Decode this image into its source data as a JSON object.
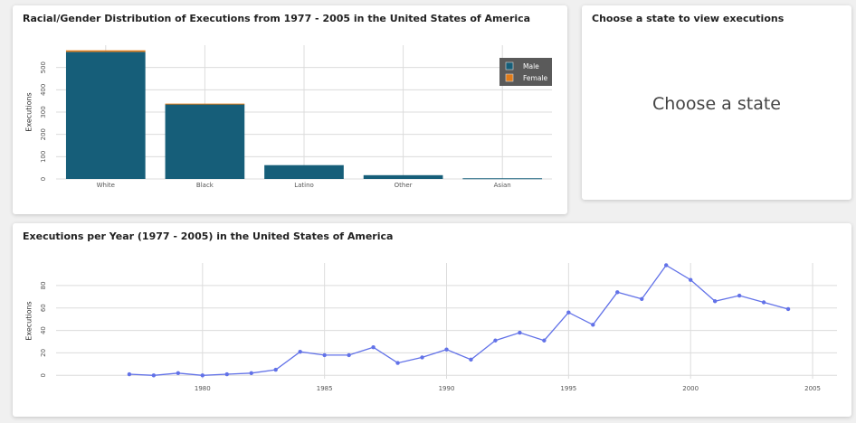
{
  "race_panel": {
    "title": "Racial/Gender Distribution of Executions from 1977 - 2005 in the United States of America"
  },
  "state_panel": {
    "title": "Choose a state to view executions",
    "placeholder": "Choose a state"
  },
  "year_panel": {
    "title": "Executions per Year (1977 - 2005) in the United States of America"
  },
  "colors": {
    "male": "#165e79",
    "female": "#e07b19",
    "line": "#6272e8",
    "grid": "#dcdcdc",
    "legend_bg": "#5a5a5a"
  },
  "chart_data": [
    {
      "type": "bar",
      "title": "Racial/Gender Distribution of Executions from 1977 - 2005 in the United States of America",
      "xlabel": "",
      "ylabel": "Executions",
      "categories": [
        "White",
        "Black",
        "Latino",
        "Other",
        "Asian"
      ],
      "series": [
        {
          "name": "Male",
          "values": [
            570,
            335,
            62,
            17,
            3
          ]
        },
        {
          "name": "Female",
          "values": [
            7,
            3,
            0,
            0,
            0
          ]
        }
      ],
      "stacked": true,
      "ylim": [
        0,
        600
      ],
      "yticks": [
        0,
        100,
        200,
        300,
        400,
        500
      ],
      "legend_position": "top-right",
      "grid": true
    },
    {
      "type": "line",
      "title": "Executions per Year (1977 - 2005) in the United States of America",
      "xlabel": "",
      "ylabel": "Executions",
      "x": [
        1977,
        1978,
        1979,
        1980,
        1981,
        1982,
        1983,
        1984,
        1985,
        1986,
        1987,
        1988,
        1989,
        1990,
        1991,
        1992,
        1993,
        1994,
        1995,
        1996,
        1997,
        1998,
        1999,
        2000,
        2001,
        2002,
        2003,
        2004
      ],
      "y": [
        1,
        0,
        2,
        0,
        1,
        2,
        5,
        21,
        18,
        18,
        25,
        11,
        16,
        23,
        14,
        31,
        38,
        31,
        56,
        45,
        74,
        68,
        98,
        85,
        66,
        71,
        65,
        59
      ],
      "xlim": [
        1974,
        2006
      ],
      "ylim": [
        -3,
        100
      ],
      "xticks": [
        1980,
        1985,
        1990,
        1995,
        2000,
        2005
      ],
      "yticks": [
        0,
        20,
        40,
        60,
        80
      ],
      "grid": true
    }
  ]
}
